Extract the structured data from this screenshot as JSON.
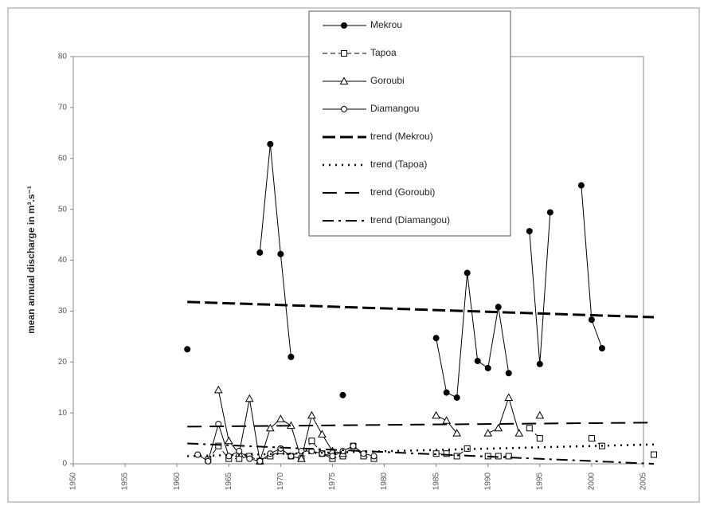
{
  "chart_data": {
    "type": "line",
    "y_label": "mean annual discharge in m³.s⁻¹",
    "xlim": [
      1950,
      2005
    ],
    "xticks": [
      1950,
      1955,
      1960,
      1965,
      1970,
      1975,
      1980,
      1985,
      1990,
      1995,
      2000,
      2005
    ],
    "ylim": [
      0,
      80
    ],
    "yticks": [
      0,
      10,
      20,
      30,
      40,
      50,
      60,
      70,
      80
    ],
    "series": [
      {
        "name": "Mekrou",
        "color": "#000000",
        "marker": "filled-circle",
        "dash": "solid",
        "x": [
          1961,
          1962,
          1963,
          1964,
          1965,
          1966,
          1967,
          1968,
          1969,
          1970,
          1971,
          1972,
          1973,
          1974,
          1975,
          1976,
          1977,
          1978,
          1979,
          1980,
          1981,
          1982,
          1983,
          1984,
          1985,
          1986,
          1987,
          1988,
          1989,
          1990,
          1991,
          1992,
          1993,
          1994,
          1995,
          1996,
          1997,
          1998,
          1999,
          2000,
          2001
        ],
        "values": [
          22.5,
          null,
          null,
          null,
          null,
          null,
          null,
          41.5,
          62.8,
          41.2,
          21,
          null,
          null,
          null,
          null,
          13.5,
          null,
          null,
          null,
          null,
          null,
          null,
          null,
          null,
          24.7,
          14,
          13,
          37.5,
          20.2,
          18.8,
          30.8,
          17.8,
          null,
          45.7,
          19.6,
          49.4,
          null,
          null,
          54.7,
          28.3,
          22.7
        ]
      },
      {
        "name": "Tapoa",
        "color": "#000000",
        "marker": "square",
        "dash": "dashed",
        "x": [
          1963,
          1964,
          1965,
          1966,
          1967,
          1968,
          1969,
          1970,
          1971,
          1972,
          1973,
          1974,
          1975,
          1976,
          1977,
          1978,
          1979,
          1980,
          1981,
          1982,
          1983,
          1984,
          1985,
          1986,
          1987,
          1988,
          1989,
          1990,
          1991,
          1992,
          1993,
          1994,
          1995,
          1996,
          1997,
          1998,
          1999,
          2000,
          2001,
          2002,
          2003,
          2004,
          2005,
          2006
        ],
        "values": [
          0.8,
          3.5,
          1,
          1,
          1.5,
          0.5,
          1.5,
          2.5,
          1.5,
          1,
          4.5,
          2,
          1,
          1.5,
          3.5,
          1.5,
          1,
          null,
          null,
          null,
          null,
          null,
          2,
          2,
          1.5,
          3,
          null,
          1.5,
          1.5,
          1.5,
          null,
          7,
          5,
          null,
          null,
          null,
          null,
          5,
          3.5,
          null,
          null,
          null,
          null,
          1.8
        ]
      },
      {
        "name": "Goroubi",
        "color": "#000000",
        "marker": "triangle",
        "dash": "solid",
        "x": [
          1964,
          1965,
          1966,
          1967,
          1968,
          1969,
          1970,
          1971,
          1972,
          1973,
          1974,
          1975,
          1976,
          1977,
          1978,
          1979,
          1980,
          1981,
          1982,
          1983,
          1984,
          1985,
          1986,
          1987,
          1988,
          1989,
          1990,
          1991,
          1992,
          1993,
          1994,
          1995
        ],
        "values": [
          14.5,
          4.5,
          2,
          12.8,
          0.5,
          7,
          8.8,
          7.5,
          1,
          9.5,
          5.8,
          2.5,
          2,
          null,
          null,
          null,
          null,
          null,
          null,
          null,
          null,
          9.5,
          8.5,
          6,
          null,
          null,
          6,
          7,
          13,
          6,
          null,
          9.5
        ]
      },
      {
        "name": "Diamangou",
        "color": "#000000",
        "marker": "circle",
        "dash": "solid",
        "x": [
          1962,
          1963,
          1964,
          1965,
          1966,
          1967,
          1968,
          1969,
          1970,
          1971,
          1972,
          1973,
          1974,
          1975,
          1976,
          1977,
          1978,
          1979
        ],
        "values": [
          1.8,
          0.5,
          7.8,
          1.5,
          2.5,
          1,
          0.5,
          2,
          3,
          1.5,
          2.5,
          2.5,
          2,
          1.5,
          2.5,
          3.5,
          2,
          1.5
        ]
      },
      {
        "name": "trend (Mekrou)",
        "color": "#000000",
        "marker": "none",
        "dash": "long-dash-thick",
        "x": [
          1961,
          2006
        ],
        "values": [
          31.8,
          28.8
        ]
      },
      {
        "name": "trend (Tapoa)",
        "color": "#000000",
        "marker": "none",
        "dash": "dotted",
        "x": [
          1961,
          2006
        ],
        "values": [
          1.5,
          3.8
        ]
      },
      {
        "name": "trend (Goroubi)",
        "color": "#000000",
        "marker": "none",
        "dash": "long-dash",
        "x": [
          1961,
          2006
        ],
        "values": [
          7.3,
          8.1
        ]
      },
      {
        "name": "trend (Diamangou)",
        "color": "#000000",
        "marker": "none",
        "dash": "dash-dot",
        "x": [
          1961,
          2006
        ],
        "values": [
          4,
          0
        ]
      }
    ]
  }
}
